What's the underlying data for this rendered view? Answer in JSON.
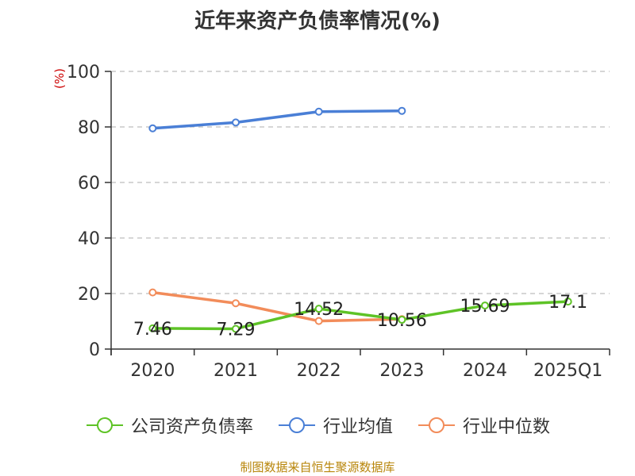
{
  "title": "近年来资产负债率情况(%)",
  "source": "制图数据来自恒生聚源数据库",
  "chart_data": {
    "type": "line",
    "title": "近年来资产负债率情况(%)",
    "ylabel": "(%)",
    "xlabel": "",
    "categories": [
      "2020",
      "2021",
      "2022",
      "2023",
      "2024",
      "2025Q1"
    ],
    "ylim": [
      0,
      100
    ],
    "yticks": [
      0,
      20,
      40,
      60,
      80,
      100
    ],
    "grid": true,
    "legend_position": "bottom",
    "series": [
      {
        "name": "公司资产负债率",
        "color": "#5ec326",
        "values": [
          7.46,
          7.29,
          14.52,
          10.56,
          15.69,
          17.1
        ],
        "labels": [
          "7.46",
          "7.29",
          "14.52",
          "10.56",
          "15.69",
          "17.1"
        ]
      },
      {
        "name": "行业均值",
        "color": "#4a7fd6",
        "values": [
          79.5,
          81.6,
          85.5,
          85.8,
          null,
          null
        ]
      },
      {
        "name": "行业中位数",
        "color": "#f28c5a",
        "values": [
          20.4,
          16.5,
          10.1,
          10.8,
          null,
          null
        ]
      }
    ]
  }
}
